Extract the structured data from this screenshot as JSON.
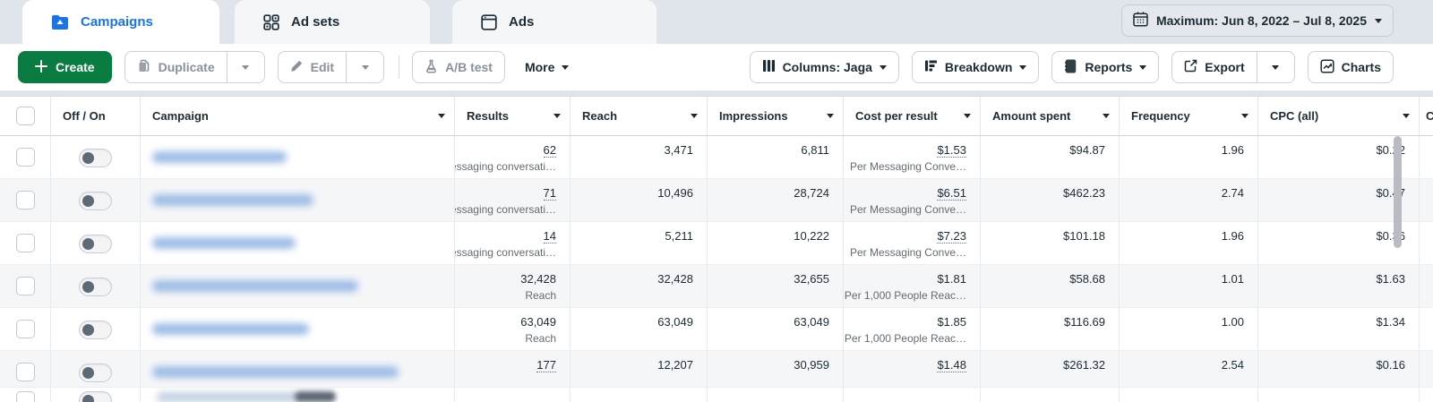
{
  "tabs": [
    {
      "label": "Campaigns",
      "icon": "folder-campaigns-icon",
      "active": true
    },
    {
      "label": "Ad sets",
      "icon": "ad-sets-grid-icon",
      "active": false
    },
    {
      "label": "Ads",
      "icon": "ads-page-icon",
      "active": false
    }
  ],
  "date_range": {
    "label": "Maximum: Jun 8, 2022 – Jul 8, 2025",
    "icon": "calendar-icon"
  },
  "toolbar": {
    "create": "Create",
    "duplicate": "Duplicate",
    "edit": "Edit",
    "ab_test": "A/B test",
    "more": "More",
    "columns": "Columns: Jaga",
    "breakdown": "Breakdown",
    "reports": "Reports",
    "export": "Export",
    "charts": "Charts"
  },
  "table": {
    "columns": [
      {
        "label": "Off / On",
        "sortable": false
      },
      {
        "label": "Campaign",
        "sortable": true
      },
      {
        "label": "Results",
        "sortable": true
      },
      {
        "label": "Reach",
        "sortable": true
      },
      {
        "label": "Impressions",
        "sortable": true
      },
      {
        "label": "Cost per result",
        "sortable": true
      },
      {
        "label": "Amount spent",
        "sortable": true
      },
      {
        "label": "Frequency",
        "sortable": true
      },
      {
        "label": "CPC (all)",
        "sortable": true
      }
    ],
    "next_column_fragment": "C",
    "rows": [
      {
        "toggle": "off",
        "name_redacted": true,
        "name_blur_width": 150,
        "results": "62",
        "results_sub": "Messaging conversati…",
        "results_linked": true,
        "reach": "3,471",
        "impressions": "6,811",
        "cost_per_result": "$1.53",
        "cost_sub": "Per Messaging Conve…",
        "cost_linked": true,
        "amount_spent": "$94.87",
        "frequency": "1.96",
        "cpc": "$0.22",
        "shaded": false
      },
      {
        "toggle": "off",
        "name_redacted": true,
        "name_blur_width": 180,
        "results": "71",
        "results_sub": "Messaging conversati…",
        "results_linked": true,
        "reach": "10,496",
        "impressions": "28,724",
        "cost_per_result": "$6.51",
        "cost_sub": "Per Messaging Conve…",
        "cost_linked": true,
        "amount_spent": "$462.23",
        "frequency": "2.74",
        "cpc": "$0.47",
        "shaded": true
      },
      {
        "toggle": "off",
        "name_redacted": true,
        "name_blur_width": 160,
        "results": "14",
        "results_sub": "Messaging conversati…",
        "results_linked": true,
        "reach": "5,211",
        "impressions": "10,222",
        "cost_per_result": "$7.23",
        "cost_sub": "Per Messaging Conve…",
        "cost_linked": true,
        "amount_spent": "$101.18",
        "frequency": "1.96",
        "cpc": "$0.36",
        "shaded": false
      },
      {
        "toggle": "off",
        "name_redacted": true,
        "name_blur_width": 230,
        "results": "32,428",
        "results_sub": "Reach",
        "results_linked": false,
        "reach": "32,428",
        "impressions": "32,655",
        "cost_per_result": "$1.81",
        "cost_sub": "Per 1,000 People Reac…",
        "cost_linked": false,
        "amount_spent": "$58.68",
        "frequency": "1.01",
        "cpc": "$1.63",
        "shaded": true
      },
      {
        "toggle": "off",
        "name_redacted": true,
        "name_blur_width": 175,
        "results": "63,049",
        "results_sub": "Reach",
        "results_linked": false,
        "reach": "63,049",
        "impressions": "63,049",
        "cost_per_result": "$1.85",
        "cost_sub": "Per 1,000 People Reac…",
        "cost_linked": false,
        "amount_spent": "$116.69",
        "frequency": "1.00",
        "cpc": "$1.34",
        "shaded": false
      },
      {
        "toggle": "off",
        "name_redacted": true,
        "name_blur_width": 275,
        "results": "177",
        "results_sub": null,
        "results_linked": true,
        "reach": "12,207",
        "impressions": "30,959",
        "cost_per_result": "$1.48",
        "cost_sub": null,
        "cost_linked": true,
        "amount_spent": "$261.32",
        "frequency": "2.54",
        "cpc": "$0.16",
        "shaded": true,
        "compact": true
      }
    ],
    "partial_row": {
      "toggle": "off",
      "name_redacted": true
    }
  },
  "colors": {
    "accent_blue": "#1b74e4",
    "create_green": "#0a7c42",
    "page_background": "#e0e5eb",
    "shaded_row": "#f5f6f8",
    "primary_text": "#1c2b33",
    "secondary_text": "#646c73",
    "disabled_text": "#8a9199"
  }
}
